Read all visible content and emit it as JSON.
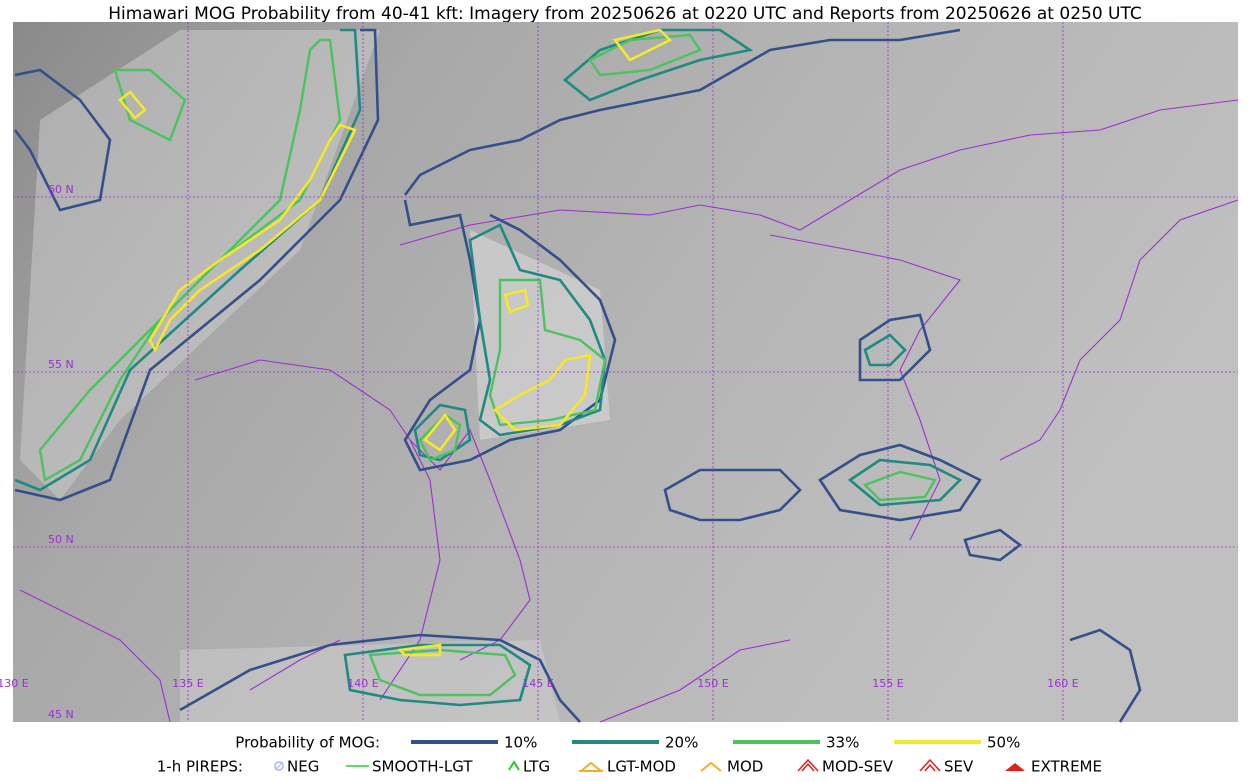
{
  "title": "Himawari MOG Probability from 40-41 kft: Imagery from 20250626 at 0220 UTC and Reports from 20250626 at 0250 UTC",
  "lat_labels": [
    "60 N",
    "55 N",
    "50 N",
    "45 N"
  ],
  "lon_labels": [
    "130 E",
    "135 E",
    "140 E",
    "145 E",
    "150 E",
    "155 E",
    "160 E"
  ],
  "legend": {
    "prob_title": "Probability of MOG:",
    "prob_items": [
      {
        "label": "10%",
        "color": "#34508a"
      },
      {
        "label": "20%",
        "color": "#1f8a82"
      },
      {
        "label": "33%",
        "color": "#4cc35e"
      },
      {
        "label": "50%",
        "color": "#f5e72b"
      }
    ],
    "pirep_title": "1-h PIREPS:",
    "pirep_items": [
      "NEG",
      "SMOOTH-LGT",
      "LTG",
      "LGT-MOD",
      "MOD",
      "MOD-SEV",
      "SEV",
      "EXTREME"
    ]
  }
}
